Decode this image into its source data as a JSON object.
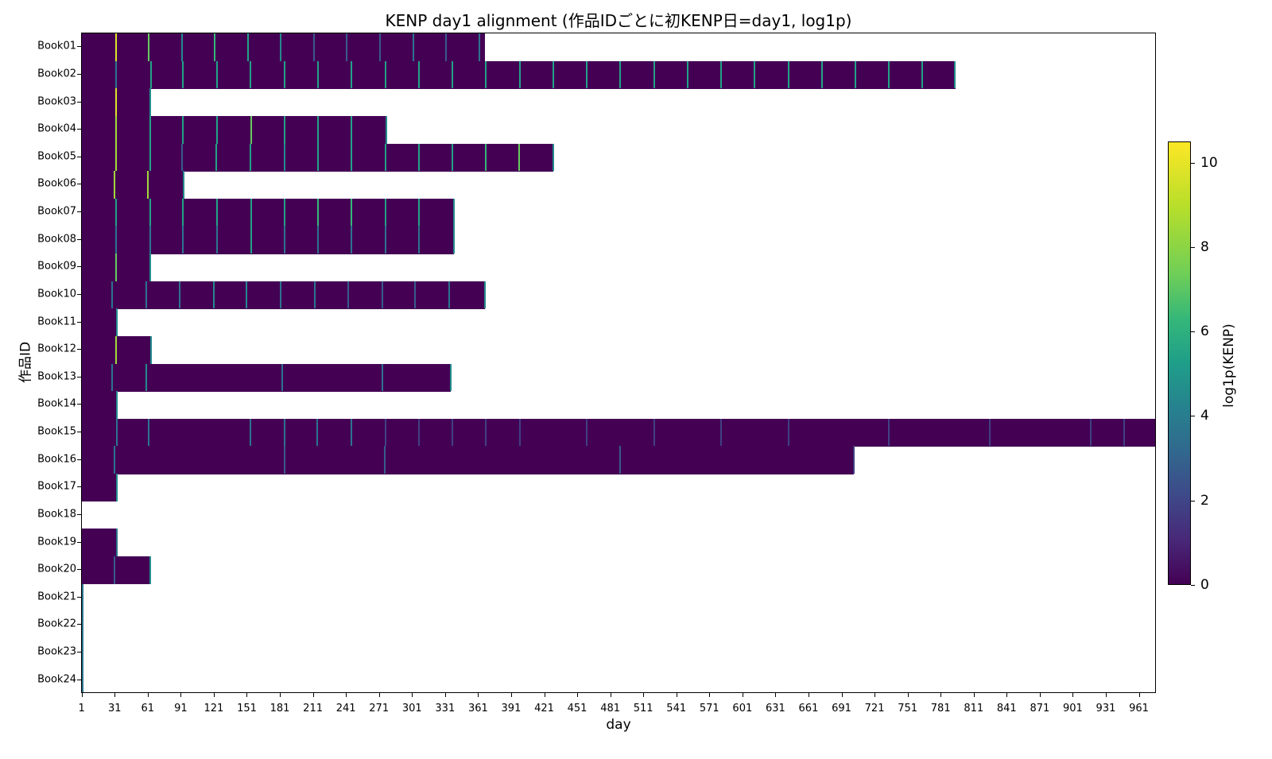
{
  "chart_data": {
    "type": "heatmap",
    "title": "KENP day1 alignment (作品IDごとに初KENP日=day1, log1p)",
    "xlabel": "day",
    "ylabel": "作品ID",
    "colorbar_label": "log1p(KENP)",
    "colormap": "viridis",
    "colorbar_ticks": [
      0,
      2,
      4,
      6,
      8,
      10
    ],
    "colorbar_range": [
      0,
      10.5
    ],
    "x_range": [
      1,
      976
    ],
    "x_ticks": [
      1,
      31,
      61,
      91,
      121,
      151,
      181,
      211,
      241,
      271,
      301,
      331,
      361,
      391,
      421,
      451,
      481,
      511,
      541,
      571,
      601,
      631,
      661,
      691,
      721,
      751,
      781,
      811,
      841,
      871,
      901,
      931,
      961
    ],
    "rows": [
      {
        "id": "Book01",
        "last_day": 366,
        "spikes": [
          [
            31,
            10
          ],
          [
            61,
            8
          ],
          [
            91,
            5
          ],
          [
            121,
            7
          ],
          [
            151,
            6
          ],
          [
            181,
            5
          ],
          [
            211,
            3
          ],
          [
            241,
            3
          ],
          [
            271,
            3
          ],
          [
            301,
            4
          ],
          [
            331,
            3
          ],
          [
            361,
            4
          ]
        ]
      },
      {
        "id": "Book02",
        "last_day": 793,
        "spikes": [
          [
            31,
            4
          ],
          [
            63,
            6
          ],
          [
            92,
            6
          ],
          [
            123,
            6
          ],
          [
            153,
            6
          ],
          [
            184,
            6
          ],
          [
            215,
            6
          ],
          [
            245,
            6
          ],
          [
            276,
            6
          ],
          [
            306,
            6
          ],
          [
            337,
            6
          ],
          [
            367,
            6
          ],
          [
            398,
            6
          ],
          [
            428,
            6
          ],
          [
            459,
            6
          ],
          [
            489,
            6
          ],
          [
            520,
            6
          ],
          [
            550,
            6
          ],
          [
            581,
            6
          ],
          [
            611,
            6
          ],
          [
            642,
            6
          ],
          [
            672,
            6
          ],
          [
            703,
            6
          ],
          [
            733,
            6
          ],
          [
            763,
            6
          ],
          [
            793,
            5
          ]
        ]
      },
      {
        "id": "Book03",
        "last_day": 62,
        "spikes": [
          [
            31,
            10
          ],
          [
            62,
            5
          ]
        ]
      },
      {
        "id": "Book04",
        "last_day": 277,
        "spikes": [
          [
            31,
            9
          ],
          [
            62,
            6
          ],
          [
            92,
            6
          ],
          [
            123,
            6
          ],
          [
            154,
            8
          ],
          [
            184,
            6
          ],
          [
            215,
            6
          ],
          [
            245,
            6
          ],
          [
            277,
            5
          ]
        ]
      },
      {
        "id": "Book05",
        "last_day": 428,
        "spikes": [
          [
            31,
            9
          ],
          [
            62,
            6
          ],
          [
            91,
            3
          ],
          [
            122,
            6
          ],
          [
            153,
            6
          ],
          [
            184,
            5
          ],
          [
            215,
            6
          ],
          [
            245,
            6
          ],
          [
            276,
            6
          ],
          [
            306,
            6
          ],
          [
            337,
            6
          ],
          [
            367,
            7
          ],
          [
            397,
            8
          ],
          [
            428,
            5
          ]
        ]
      },
      {
        "id": "Book06",
        "last_day": 93,
        "spikes": [
          [
            30,
            9
          ],
          [
            60,
            9
          ],
          [
            93,
            5
          ]
        ]
      },
      {
        "id": "Book07",
        "last_day": 338,
        "spikes": [
          [
            31,
            6
          ],
          [
            62,
            6
          ],
          [
            92,
            6
          ],
          [
            123,
            6
          ],
          [
            154,
            6
          ],
          [
            184,
            6
          ],
          [
            215,
            7
          ],
          [
            245,
            7
          ],
          [
            276,
            6
          ],
          [
            306,
            6
          ],
          [
            338,
            5
          ]
        ]
      },
      {
        "id": "Book08",
        "last_day": 338,
        "spikes": [
          [
            31,
            4
          ],
          [
            62,
            4
          ],
          [
            92,
            4
          ],
          [
            123,
            4
          ],
          [
            154,
            6
          ],
          [
            184,
            4
          ],
          [
            215,
            4
          ],
          [
            245,
            4
          ],
          [
            276,
            4
          ],
          [
            306,
            4
          ],
          [
            338,
            5
          ]
        ]
      },
      {
        "id": "Book09",
        "last_day": 62,
        "spikes": [
          [
            31,
            8
          ],
          [
            62,
            5
          ]
        ]
      },
      {
        "id": "Book10",
        "last_day": 366,
        "spikes": [
          [
            28,
            4
          ],
          [
            59,
            4
          ],
          [
            89,
            4
          ],
          [
            120,
            5
          ],
          [
            150,
            5
          ],
          [
            181,
            4
          ],
          [
            212,
            4
          ],
          [
            242,
            3
          ],
          [
            273,
            3
          ],
          [
            303,
            3
          ],
          [
            334,
            4
          ],
          [
            366,
            5
          ]
        ]
      },
      {
        "id": "Book11",
        "last_day": 32,
        "spikes": [
          [
            32,
            5
          ]
        ]
      },
      {
        "id": "Book12",
        "last_day": 63,
        "spikes": [
          [
            31,
            9
          ],
          [
            63,
            5
          ]
        ]
      },
      {
        "id": "Book13",
        "last_day": 335,
        "spikes": [
          [
            28,
            4
          ],
          [
            59,
            5
          ],
          [
            182,
            4
          ],
          [
            273,
            4
          ],
          [
            335,
            5
          ]
        ]
      },
      {
        "id": "Book14",
        "last_day": 32,
        "spikes": [
          [
            32,
            5
          ]
        ]
      },
      {
        "id": "Book15",
        "last_day": 976,
        "spikes": [
          [
            32,
            4
          ],
          [
            61,
            4
          ],
          [
            153,
            4
          ],
          [
            184,
            4
          ],
          [
            214,
            4
          ],
          [
            245,
            4
          ],
          [
            276,
            2
          ],
          [
            306,
            2
          ],
          [
            337,
            2
          ],
          [
            367,
            2
          ],
          [
            398,
            2
          ],
          [
            459,
            2
          ],
          [
            520,
            2
          ],
          [
            581,
            2
          ],
          [
            642,
            2
          ],
          [
            733,
            2
          ],
          [
            825,
            2
          ],
          [
            916,
            2
          ],
          [
            947,
            2
          ]
        ]
      },
      {
        "id": "Book16",
        "last_day": 701,
        "spikes": [
          [
            30,
            4
          ],
          [
            184,
            3
          ],
          [
            275,
            3
          ],
          [
            489,
            3
          ],
          [
            701,
            2
          ]
        ]
      },
      {
        "id": "Book17",
        "last_day": 32,
        "spikes": [
          [
            32,
            5
          ]
        ]
      },
      {
        "id": "Book18",
        "last_day": 0,
        "spikes": []
      },
      {
        "id": "Book19",
        "last_day": 32,
        "spikes": [
          [
            32,
            4
          ]
        ]
      },
      {
        "id": "Book20",
        "last_day": 62,
        "spikes": [
          [
            30,
            3
          ],
          [
            62,
            5
          ]
        ]
      },
      {
        "id": "Book21",
        "last_day": 1,
        "spikes": [
          [
            1,
            4
          ]
        ]
      },
      {
        "id": "Book22",
        "last_day": 1,
        "spikes": [
          [
            1,
            4
          ]
        ]
      },
      {
        "id": "Book23",
        "last_day": 1,
        "spikes": [
          [
            1,
            4
          ]
        ]
      },
      {
        "id": "Book24",
        "last_day": 1,
        "spikes": [
          [
            1,
            4
          ]
        ]
      }
    ],
    "base_value": 0
  }
}
